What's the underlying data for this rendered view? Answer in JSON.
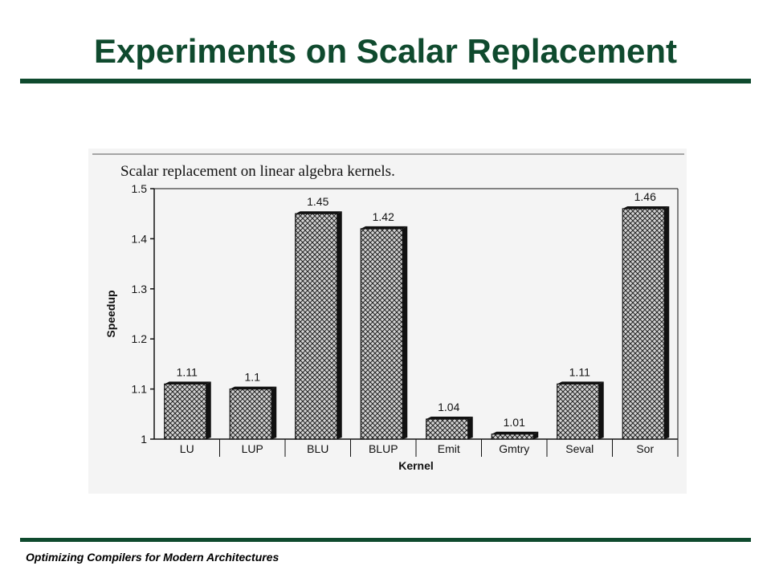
{
  "slide": {
    "title": "Experiments on Scalar Replacement",
    "footer": "Optimizing Compilers for Modern Architectures"
  },
  "colors": {
    "title": "#0f4a2e",
    "rule": "#0f4a2e",
    "bar_fill": "#c8c8c8",
    "bar_shadow": "#111111"
  },
  "chart_data": {
    "type": "bar",
    "title": "Scalar replacement on linear algebra kernels.",
    "xlabel": "Kernel",
    "ylabel": "Speedup",
    "ylim": [
      1,
      1.5
    ],
    "yticks": [
      "1",
      "1.1",
      "1.2",
      "1.3",
      "1.4",
      "1.5"
    ],
    "categories": [
      "LU",
      "LUP",
      "BLU",
      "BLUP",
      "Emit",
      "Gmtry",
      "Seval",
      "Sor"
    ],
    "values": [
      1.11,
      1.1,
      1.45,
      1.42,
      1.04,
      1.01,
      1.11,
      1.46
    ],
    "data_labels": [
      "1.11",
      "1.1",
      "1.45",
      "1.42",
      "1.04",
      "1.01",
      "1.11",
      "1.46"
    ],
    "grid": false,
    "legend": "none"
  }
}
